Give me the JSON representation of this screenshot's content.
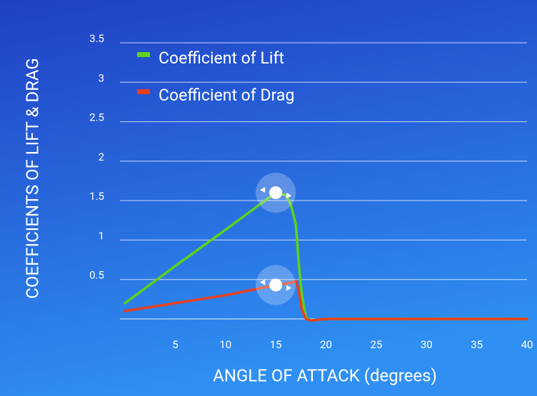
{
  "chart_data": {
    "type": "line",
    "xlabel": "ANGLE OF ATTACK (degrees)",
    "ylabel": "COEFFICIENTS OF LIFT & DRAG",
    "x": [
      0,
      5,
      10,
      15,
      16,
      16.5,
      17,
      17.3,
      17.6,
      18,
      18.5,
      20,
      25,
      30,
      35,
      40
    ],
    "series": [
      {
        "name": "Coefficient of Lift",
        "color": "#5ed21c",
        "values": [
          0.2,
          0.67,
          1.13,
          1.6,
          1.57,
          1.45,
          1.2,
          0.7,
          0.3,
          0.02,
          -0.02,
          0,
          0,
          0,
          0,
          0
        ]
      },
      {
        "name": "Coefficient of Drag",
        "color": "#e8401c",
        "values": [
          0.1,
          0.2,
          0.3,
          0.43,
          0.45,
          0.46,
          0.48,
          0.35,
          0.12,
          0,
          -0.02,
          0,
          0,
          0,
          0,
          0
        ]
      }
    ],
    "xlim": [
      0,
      40
    ],
    "xticks": [
      5,
      10,
      15,
      20,
      25,
      30,
      35,
      40
    ],
    "ylim": [
      0,
      3.5
    ],
    "yticks": [
      0.5,
      1,
      1.5,
      2,
      2.5,
      3,
      3.5
    ],
    "grid": true,
    "legend": "upper left"
  }
}
